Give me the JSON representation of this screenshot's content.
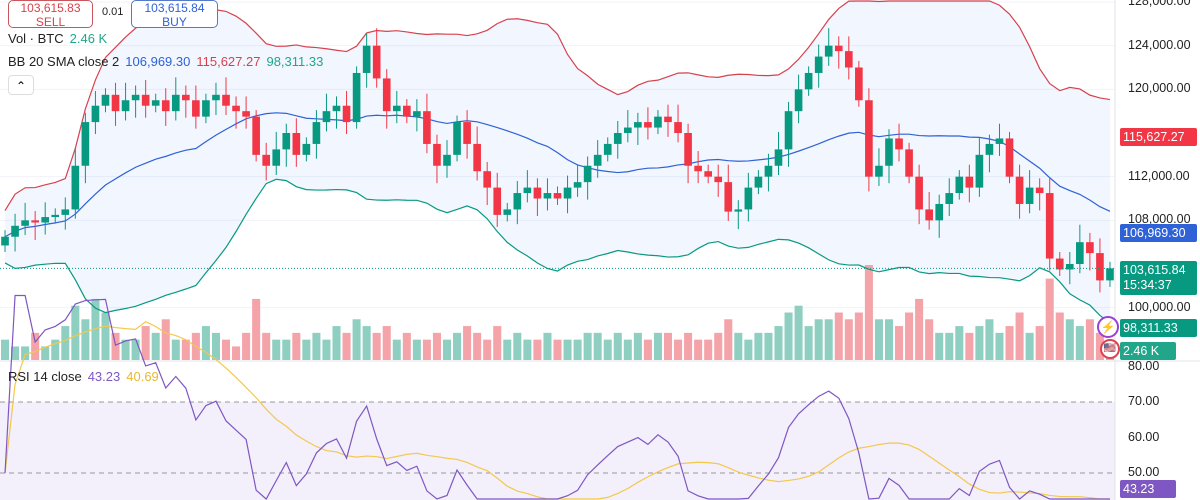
{
  "trade": {
    "sell_price": "103,615.83",
    "sell_label": "SELL",
    "quantity": "0.01",
    "buy_price": "103,615.84",
    "buy_label": "BUY"
  },
  "legend": {
    "vol_label": "Vol · BTC",
    "vol_value": "2.46 K",
    "bb_label": "BB 20 SMA close 2",
    "bb_basis": "106,969.30",
    "bb_upper": "115,627.27",
    "bb_lower": "98,311.33",
    "rsi_label": "RSI 14 close",
    "rsi_value": "43.23",
    "rsi_sma": "40.69"
  },
  "tags": {
    "upper": "115,627.27",
    "basis": "106,969.30",
    "price": "103,615.84",
    "countdown": "15:34:37",
    "lower": "98,311.33",
    "volume": "2.46 K",
    "rsi": "43.23"
  },
  "colors": {
    "up": "#089981",
    "down": "#f23645",
    "upper": "#d6424c",
    "basis": "#2f62d6",
    "lower": "#089981",
    "rsi": "#7e57c2",
    "rsi_sma": "#f2c94c"
  },
  "chart_data": {
    "type": "candlestick",
    "symbol_pair": "BTC",
    "price_ticks": [
      "128,000.00",
      "124,000.00",
      "120,000.00",
      "112,000.00",
      "108,000.00",
      "100,000.00"
    ],
    "price_tick_values": [
      128000,
      124000,
      120000,
      112000,
      108000,
      100000
    ],
    "rsi_ticks": [
      "80.00",
      "70.00",
      "60.00",
      "50.00"
    ],
    "rsi_tick_values": [
      80,
      70,
      60,
      50
    ],
    "ylim": [
      96000,
      128200
    ],
    "close": [
      106.5,
      107.5,
      108,
      107.8,
      108.3,
      108.5,
      109,
      113,
      117,
      118.5,
      119.5,
      118,
      119,
      119.5,
      118.5,
      119,
      118,
      119.5,
      119,
      117.5,
      119,
      119.5,
      118.5,
      118,
      117.5,
      114,
      113,
      114.5,
      116,
      114,
      115,
      117,
      118,
      118.5,
      117,
      121.5,
      124,
      121,
      118,
      118.5,
      117.5,
      118,
      115,
      113,
      114,
      117,
      115,
      112.5,
      111,
      108.5,
      109,
      110.5,
      111,
      110,
      110.5,
      110,
      111,
      111.5,
      113,
      114,
      115,
      116,
      116.5,
      117,
      116.5,
      117.5,
      117,
      116,
      113,
      112.5,
      112,
      111.5,
      108.8,
      109,
      111,
      112,
      113,
      114.5,
      118,
      120,
      121.5,
      123,
      124,
      123.5,
      122,
      119,
      112,
      113,
      115.5,
      114.5,
      112,
      109,
      108,
      109.5,
      110.5,
      112,
      111,
      114,
      115,
      115.5,
      112,
      109.5,
      111,
      110.5,
      104.5,
      103.5,
      104,
      106,
      105,
      102.5,
      103.6
    ],
    "volume": [
      3,
      2,
      2,
      4,
      2,
      3,
      5,
      8,
      6,
      9,
      7,
      4,
      3,
      3,
      5,
      4,
      6,
      3,
      3,
      4,
      5,
      4,
      3,
      2,
      4,
      9,
      4,
      3,
      3,
      4,
      3,
      4,
      3,
      5,
      4,
      6,
      5,
      4,
      5,
      3,
      4,
      3,
      3,
      4,
      3,
      4,
      5,
      4,
      3,
      5,
      3,
      4,
      3,
      3,
      4,
      3,
      3,
      3,
      4,
      4,
      3,
      4,
      3,
      4,
      3,
      4,
      4,
      3,
      4,
      3,
      3,
      4,
      6,
      4,
      3,
      4,
      4,
      5,
      7,
      8,
      5,
      6,
      6,
      7,
      6,
      7,
      14,
      6,
      6,
      5,
      7,
      9,
      6,
      4,
      4,
      5,
      4,
      5,
      6,
      4,
      5,
      7,
      4,
      5,
      12,
      7,
      6,
      5,
      6,
      4,
      3
    ]
  }
}
